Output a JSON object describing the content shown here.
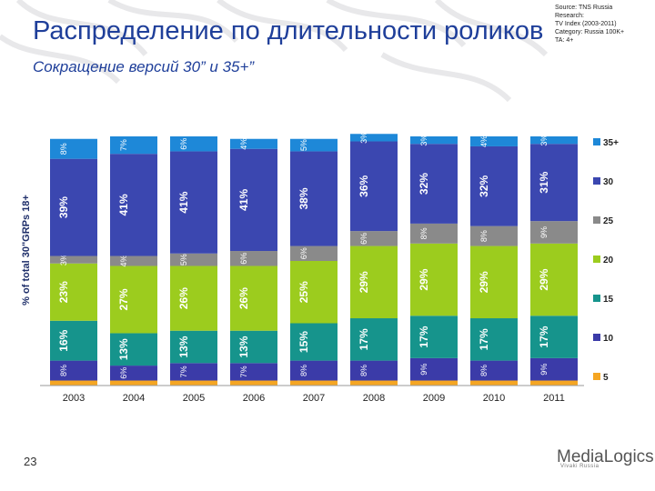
{
  "header": {
    "title": "Распределение по длительности роликов",
    "subtitle": "Сокращение версий 30” и 35+”",
    "source_lines": [
      "Source: TNS Russia",
      "Research:",
      "TV Index (2003-2011)",
      "Category: Russia 100K+",
      "TA: 4+"
    ]
  },
  "footer": {
    "page_number": "23",
    "logo_text": "MediaLogics",
    "logo_sub": "Vivaki  Russia"
  },
  "colors": {
    "s5": "#f5a623",
    "s10": "#3b3ba8",
    "s15": "#16948c",
    "s20": "#9ccc1e",
    "s25": "#8a8a8a",
    "s30": "#3b47b0",
    "s35": "#1e88d8",
    "title": "#1f3f9a"
  },
  "chart_data": {
    "type": "bar",
    "stacked": true,
    "categories": [
      "2003",
      "2004",
      "2005",
      "2006",
      "2007",
      "2008",
      "2009",
      "2010",
      "2011"
    ],
    "ylabel": "% of total 30\"GRPs 18+",
    "ylim": [
      0,
      100
    ],
    "legend_position": "right",
    "series": [
      {
        "name": "5",
        "color_key": "s5",
        "values": [
          2,
          2,
          2,
          2,
          2,
          2,
          2,
          2,
          2
        ],
        "labels": [
          "",
          "",
          "",
          "",
          "",
          "",
          "",
          "",
          ""
        ]
      },
      {
        "name": "10",
        "color_key": "s10",
        "values": [
          8,
          6,
          7,
          7,
          8,
          8,
          9,
          8,
          9
        ],
        "labels": [
          "8%",
          "6%",
          "7%",
          "7%",
          "8%",
          "8%",
          "9%",
          "8%",
          "9%"
        ]
      },
      {
        "name": "15",
        "color_key": "s15",
        "values": [
          16,
          13,
          13,
          13,
          15,
          17,
          17,
          17,
          17
        ],
        "labels": [
          "16%",
          "13%",
          "13%",
          "13%",
          "15%",
          "17%",
          "17%",
          "17%",
          "17%"
        ]
      },
      {
        "name": "20",
        "color_key": "s20",
        "values": [
          23,
          27,
          26,
          26,
          25,
          29,
          29,
          29,
          29
        ],
        "labels": [
          "23%",
          "27%",
          "26%",
          "26%",
          "25%",
          "29%",
          "29%",
          "29%",
          "29%"
        ]
      },
      {
        "name": "25",
        "color_key": "s25",
        "values": [
          3,
          4,
          5,
          6,
          6,
          6,
          8,
          8,
          9
        ],
        "labels": [
          "3%",
          "4%",
          "5%",
          "6%",
          "6%",
          "6%",
          "8%",
          "8%",
          "9%"
        ]
      },
      {
        "name": "30",
        "color_key": "s30",
        "values": [
          39,
          41,
          41,
          41,
          38,
          36,
          32,
          32,
          31
        ],
        "labels": [
          "39%",
          "41%",
          "41%",
          "41%",
          "38%",
          "36%",
          "32%",
          "32%",
          "31%"
        ]
      },
      {
        "name": "35+",
        "color_key": "s35",
        "values": [
          8,
          7,
          6,
          4,
          5,
          3,
          3,
          4,
          3
        ],
        "labels": [
          "8%",
          "7%",
          "6%",
          "4%",
          "5%",
          "3%",
          "3%",
          "4%",
          "3%"
        ]
      }
    ]
  }
}
